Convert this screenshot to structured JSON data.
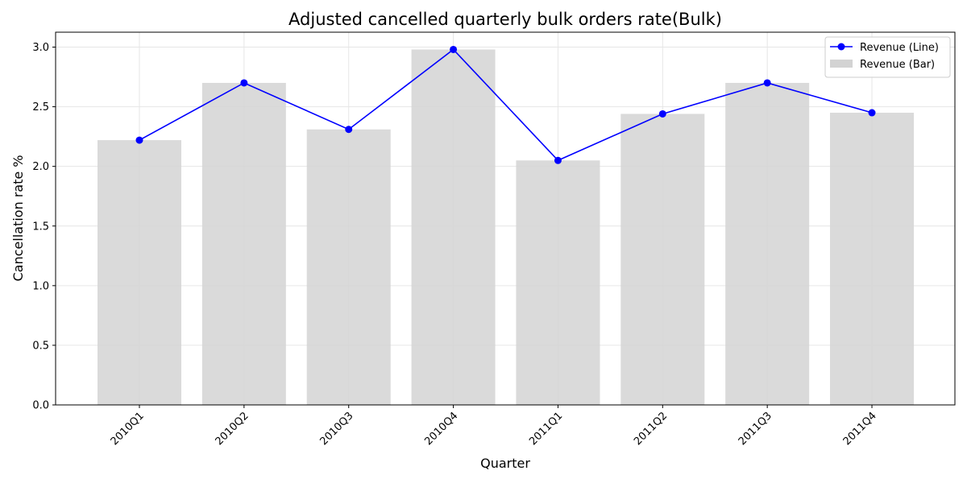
{
  "chart_data": {
    "type": "bar",
    "title": "Adjusted cancelled quarterly bulk orders rate(Bulk)",
    "xlabel": "Quarter",
    "ylabel": "Cancellation rate %",
    "categories": [
      "2010Q1",
      "2010Q2",
      "2010Q3",
      "2010Q4",
      "2011Q1",
      "2011Q2",
      "2011Q3",
      "2011Q4"
    ],
    "series": [
      {
        "name": "Revenue (Line)",
        "kind": "line",
        "color": "#0000ff",
        "values": [
          2.22,
          2.7,
          2.31,
          2.98,
          2.05,
          2.44,
          2.7,
          2.45
        ]
      },
      {
        "name": "Revenue (Bar)",
        "kind": "bar",
        "color": "#d3d3d3",
        "values": [
          2.22,
          2.7,
          2.31,
          2.98,
          2.05,
          2.44,
          2.7,
          2.45
        ]
      }
    ],
    "ylim": [
      0,
      3.125
    ],
    "yticks": [
      0.0,
      0.5,
      1.0,
      1.5,
      2.0,
      2.5,
      3.0
    ],
    "ytick_labels": [
      "0.0",
      "0.5",
      "1.0",
      "1.5",
      "2.0",
      "2.5",
      "3.0"
    ],
    "grid": true,
    "legend_position": "top-right",
    "xtick_rotation": 45
  }
}
